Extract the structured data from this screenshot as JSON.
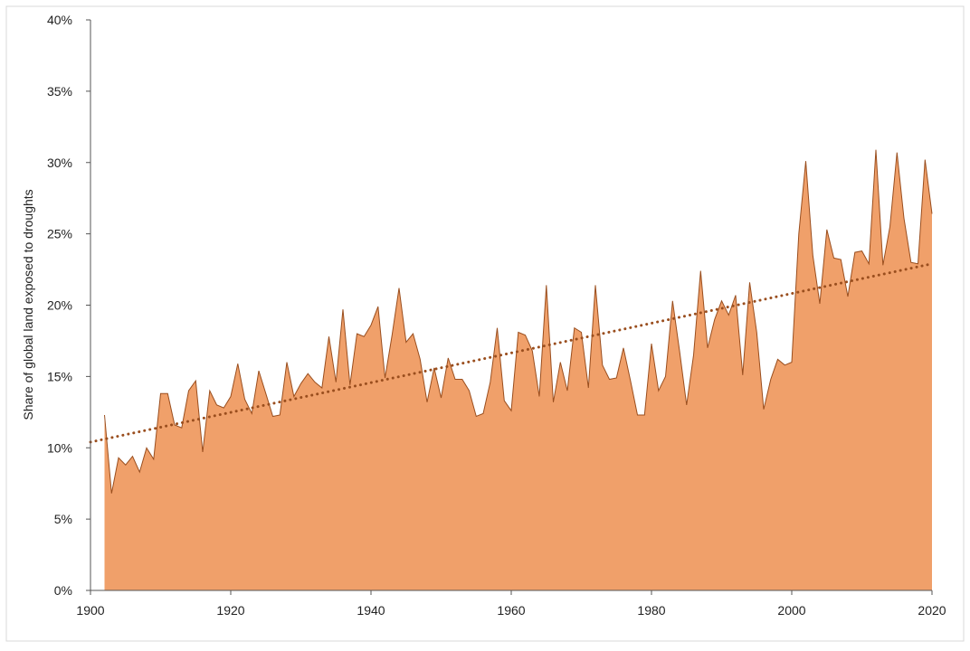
{
  "chart_data": {
    "type": "area",
    "ylabel": "Share of global land exposed to droughts",
    "xlabel": "",
    "title": "",
    "xlim": [
      1900,
      2020
    ],
    "ylim": [
      0,
      40
    ],
    "y_unit": "%",
    "grid": false,
    "legend": "none",
    "x_ticks": [
      "1900",
      "1920",
      "1940",
      "1960",
      "1980",
      "2000",
      "2020"
    ],
    "y_ticks": [
      "0%",
      "5%",
      "10%",
      "15%",
      "20%",
      "25%",
      "30%",
      "35%",
      "40%"
    ],
    "colors": {
      "fill": "#F0A06A",
      "outline": "#9A4E1E",
      "trend": "#9A4E1E",
      "axis": "#555555",
      "border": "#d9d9d9"
    },
    "trendline": {
      "style": "dotted",
      "start": [
        1900,
        10.4
      ],
      "end": [
        2020,
        22.9
      ]
    },
    "series": [
      {
        "x": [
          1902,
          1903,
          1904,
          1905,
          1906,
          1907,
          1908,
          1909,
          1910,
          1911,
          1912,
          1913,
          1914,
          1915,
          1916,
          1917,
          1918,
          1919,
          1920,
          1921,
          1922,
          1923,
          1924,
          1925,
          1926,
          1927,
          1928,
          1929,
          1930,
          1931,
          1932,
          1933,
          1934,
          1935,
          1936,
          1937,
          1938,
          1939,
          1940,
          1941,
          1942,
          1943,
          1944,
          1945,
          1946,
          1947,
          1948,
          1949,
          1950,
          1951,
          1952,
          1953,
          1954,
          1955,
          1956,
          1957,
          1958,
          1959,
          1960,
          1961,
          1962,
          1963,
          1964,
          1965,
          1966,
          1967,
          1968,
          1969,
          1970,
          1971,
          1972,
          1973,
          1974,
          1975,
          1976,
          1977,
          1978,
          1979,
          1980,
          1981,
          1982,
          1983,
          1984,
          1985,
          1986,
          1987,
          1988,
          1989,
          1990,
          1991,
          1992,
          1993,
          1994,
          1995,
          1996,
          1997,
          1998,
          1999,
          2000,
          2001,
          2002,
          2003,
          2004,
          2005,
          2006,
          2007,
          2008,
          2009,
          2010,
          2011,
          2012,
          2013,
          2014,
          2015,
          2016,
          2017,
          2018,
          2019,
          2020
        ],
        "values": [
          12.3,
          6.8,
          9.3,
          8.8,
          9.4,
          8.3,
          10.0,
          9.2,
          13.8,
          13.8,
          11.6,
          11.4,
          14.0,
          14.7,
          9.7,
          14.0,
          13.0,
          12.8,
          13.6,
          15.9,
          13.4,
          12.4,
          15.4,
          13.8,
          12.2,
          12.3,
          16.0,
          13.6,
          14.5,
          15.2,
          14.6,
          14.2,
          17.8,
          14.6,
          19.7,
          14.4,
          18.0,
          17.8,
          18.6,
          19.9,
          14.9,
          17.9,
          21.2,
          17.4,
          18.0,
          16.2,
          13.2,
          15.6,
          13.5,
          16.3,
          14.8,
          14.8,
          14.0,
          12.2,
          12.4,
          14.6,
          18.4,
          13.3,
          12.6,
          18.1,
          17.9,
          16.8,
          13.6,
          21.4,
          13.2,
          16.0,
          14.0,
          18.4,
          18.1,
          14.2,
          21.4,
          15.8,
          14.8,
          14.9,
          17.0,
          14.7,
          12.3,
          12.3,
          17.3,
          14.0,
          15.0,
          20.3,
          16.8,
          13.0,
          16.5,
          22.4,
          17.0,
          19.0,
          20.3,
          19.3,
          20.7,
          15.1,
          21.6,
          18.1,
          12.7,
          14.8,
          16.2,
          15.8,
          16.0,
          25.0,
          30.1,
          23.5,
          20.1,
          25.3,
          23.3,
          23.2,
          20.6,
          23.7,
          23.8,
          22.9,
          30.9,
          22.8,
          25.5,
          30.7,
          26.1,
          23.0,
          22.9,
          30.2,
          26.4
        ]
      }
    ]
  }
}
